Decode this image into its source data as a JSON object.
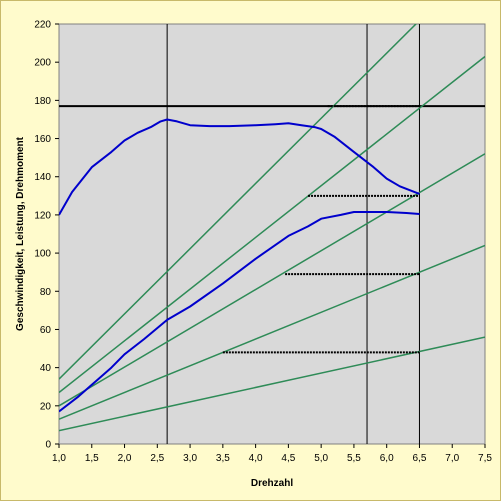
{
  "chart_data": {
    "type": "line",
    "xlabel": "Drehzahl",
    "ylabel": "Geschwindigkeit, Leistung, Drehmoment",
    "xlim": [
      1.0,
      7.5
    ],
    "ylim": [
      0,
      220
    ],
    "x_ticks": [
      "1,0",
      "1,5",
      "2,0",
      "2,5",
      "3,0",
      "3,5",
      "4,0",
      "4,5",
      "5,0",
      "5,5",
      "6,0",
      "6,5",
      "7,0",
      "7,5"
    ],
    "y_ticks": [
      "0",
      "20",
      "40",
      "60",
      "80",
      "100",
      "120",
      "140",
      "160",
      "180",
      "200",
      "220"
    ],
    "grid": false,
    "series": [
      {
        "color": "#0000cc",
        "x": [
          1.0,
          1.2,
          1.5,
          1.8,
          2.0,
          2.2,
          2.4,
          2.55,
          2.65,
          2.8,
          3.0,
          3.3,
          3.6,
          4.0,
          4.3,
          4.5,
          4.7,
          4.9,
          5.0,
          5.2,
          5.5,
          5.8,
          6.0,
          6.2,
          6.5
        ],
        "y": [
          120,
          132,
          145,
          153,
          159,
          163,
          166,
          169,
          170,
          169,
          167,
          166.5,
          166.5,
          167,
          167.5,
          168,
          167,
          166,
          165,
          161,
          153,
          145,
          139,
          135,
          131
        ]
      },
      {
        "color": "#0000cc",
        "x": [
          1.0,
          1.3,
          1.5,
          1.8,
          2.0,
          2.3,
          2.65,
          3.0,
          3.5,
          4.0,
          4.5,
          4.8,
          5.0,
          5.3,
          5.5,
          5.8,
          6.0,
          6.3,
          6.5
        ],
        "y": [
          17,
          25,
          31,
          40,
          47,
          55,
          65,
          72,
          84,
          97,
          109,
          114,
          118,
          120,
          121.5,
          121.5,
          121.5,
          121,
          120.5
        ]
      },
      {
        "color": "#2e8b57",
        "x": [
          1.0,
          7.5
        ],
        "y": [
          7,
          56
        ]
      },
      {
        "color": "#2e8b57",
        "x": [
          1.0,
          7.5
        ],
        "y": [
          13,
          104
        ]
      },
      {
        "color": "#2e8b57",
        "x": [
          1.0,
          7.5
        ],
        "y": [
          20,
          152
        ]
      },
      {
        "color": "#2e8b57",
        "x": [
          1.0,
          7.5
        ],
        "y": [
          27,
          203
        ]
      },
      {
        "color": "#2e8b57",
        "x": [
          1.0,
          7.5
        ],
        "y": [
          34,
          256
        ]
      }
    ],
    "reference_lines": {
      "vertical_x": [
        2.65,
        5.7,
        6.5
      ],
      "horizontal_y": 177,
      "horizontal_color": "#000000"
    },
    "dashed_segments": [
      {
        "x": [
          5.1,
          6.5
        ],
        "y": 177
      },
      {
        "x": [
          4.8,
          6.5
        ],
        "y": 130
      },
      {
        "x": [
          4.45,
          6.5
        ],
        "y": 89
      },
      {
        "x": [
          3.5,
          6.5
        ],
        "y": 48
      }
    ],
    "colors": {
      "plot_background": "#d9d9d9",
      "page_background": "#fffbcc"
    }
  }
}
